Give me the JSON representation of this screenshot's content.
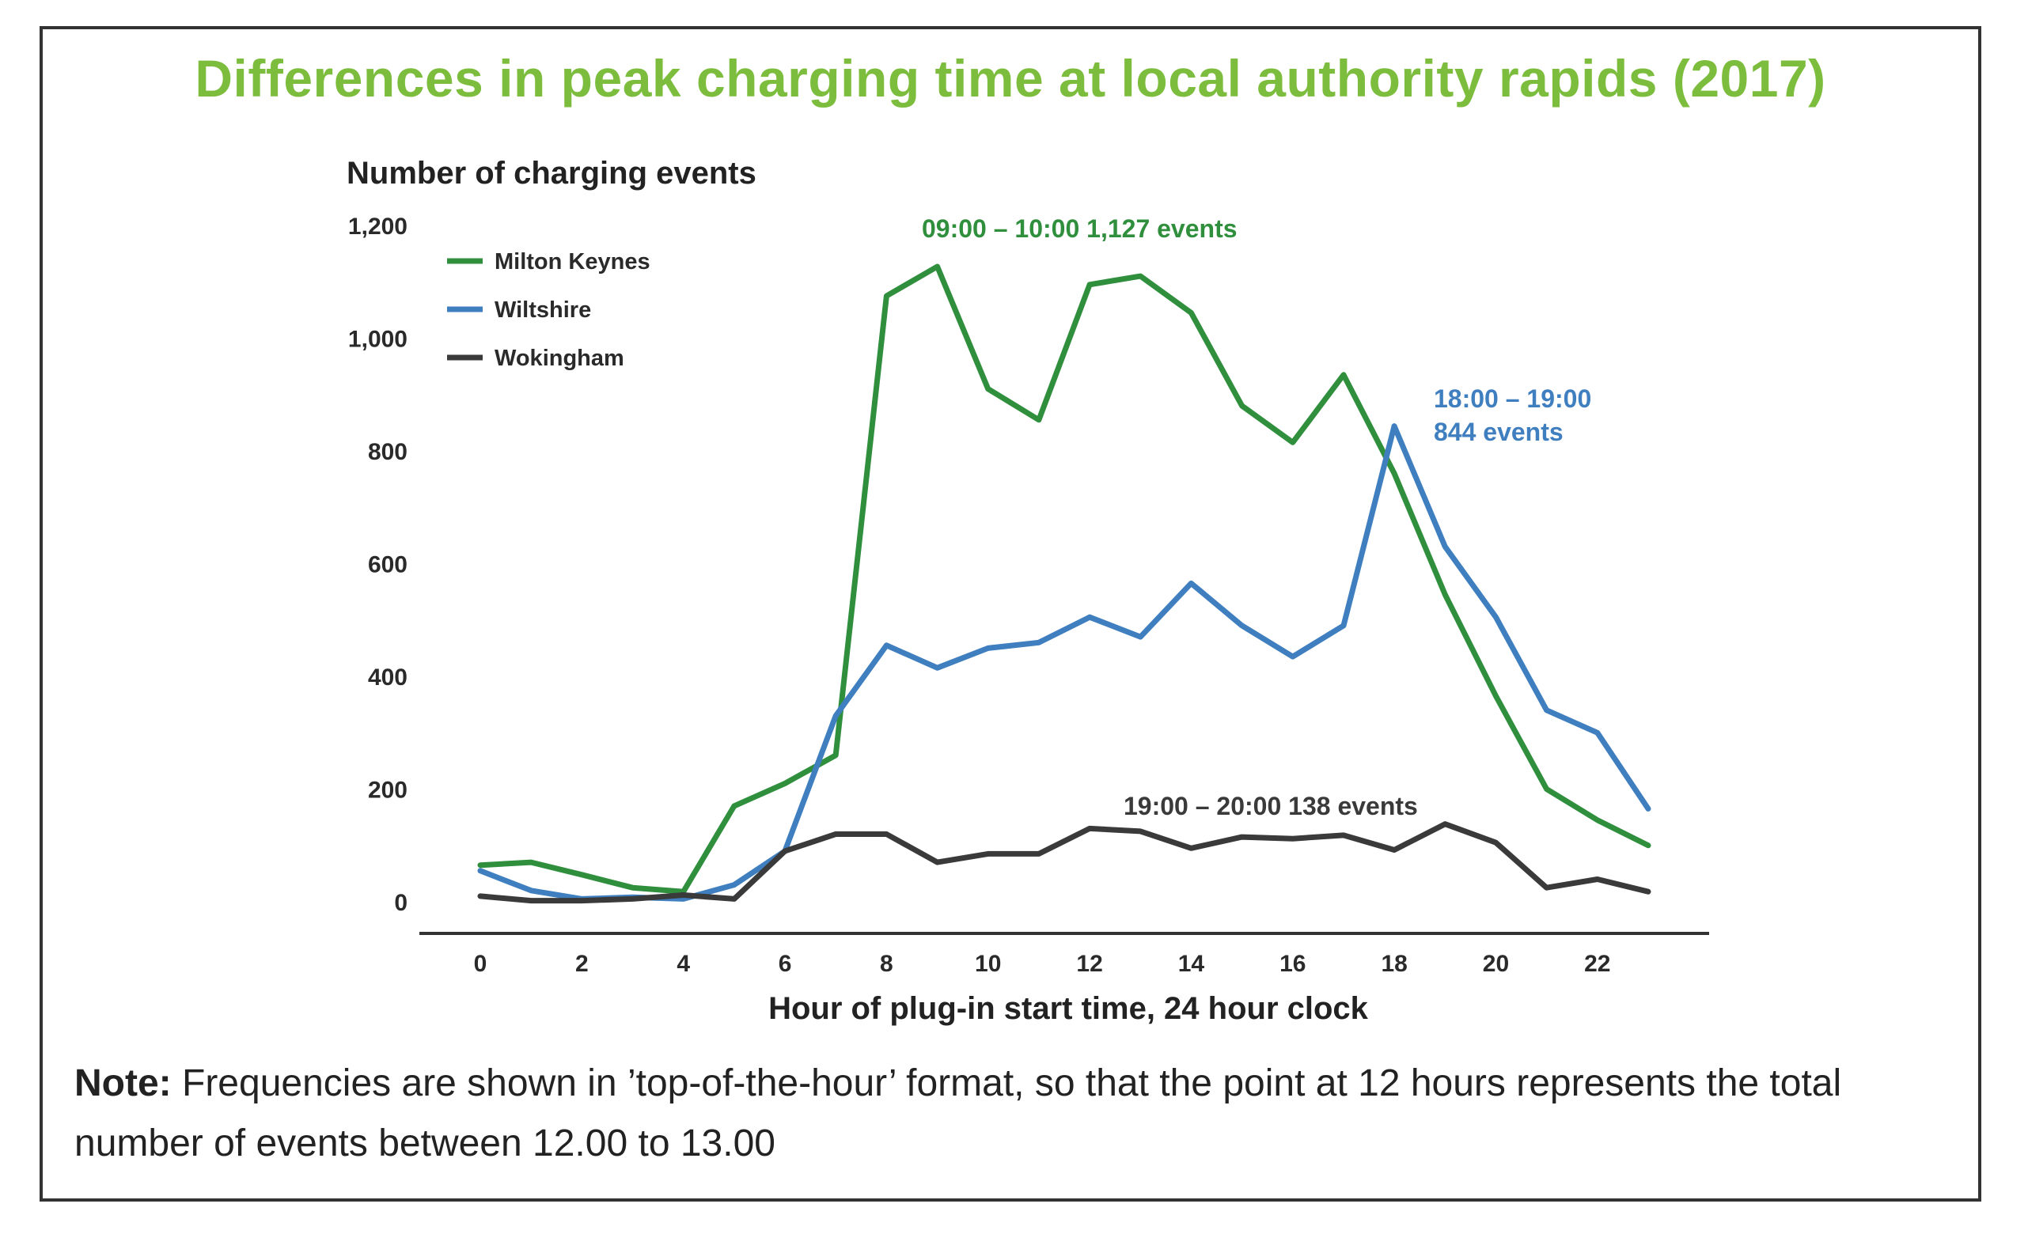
{
  "page": {
    "title": "Differences in peak charging time at local authority rapids (2017)",
    "note_label": "Note:",
    "note_text": " Frequencies are shown in ’top-of-the-hour’ format, so that the point at 12 hours represents the total number of events between 12.00 to 13.00"
  },
  "colors": {
    "title": "#7dbd3d",
    "milton_keynes": "#2f8f3d",
    "wiltshire": "#3f7fc0",
    "wokingham": "#3a3a3a"
  },
  "chart_data": {
    "type": "line",
    "title": "Differences in peak charging time at local authority rapids (2017)",
    "xlabel": "Hour of plug-in start time, 24 hour clock",
    "ylabel": "Number of charging events",
    "x": [
      0,
      1,
      2,
      3,
      4,
      5,
      6,
      7,
      8,
      9,
      10,
      11,
      12,
      13,
      14,
      15,
      16,
      17,
      18,
      19,
      20,
      21,
      22,
      23
    ],
    "xlim": [
      -1.2,
      24.2
    ],
    "ylim": [
      0,
      1200
    ],
    "xticks": [
      "0",
      "2",
      "4",
      "6",
      "8",
      "10",
      "12",
      "14",
      "16",
      "18",
      "20",
      "22"
    ],
    "xtick_values": [
      0,
      2,
      4,
      6,
      8,
      10,
      12,
      14,
      16,
      18,
      20,
      22
    ],
    "yticks": [
      "0",
      "200",
      "400",
      "600",
      "800",
      "1,000",
      "1,200"
    ],
    "ytick_values": [
      0,
      200,
      400,
      600,
      800,
      1000,
      1200
    ],
    "grid": false,
    "legend_position": "top-left",
    "series": [
      {
        "name": "Milton Keynes",
        "color": "#2f8f3d",
        "values": [
          65,
          70,
          48,
          25,
          18,
          170,
          210,
          260,
          1075,
          1127,
          910,
          855,
          1095,
          1110,
          1045,
          880,
          815,
          935,
          760,
          545,
          365,
          200,
          145,
          100
        ]
      },
      {
        "name": "Wiltshire",
        "color": "#3f7fc0",
        "values": [
          55,
          20,
          5,
          8,
          5,
          30,
          90,
          330,
          455,
          415,
          450,
          460,
          505,
          470,
          565,
          490,
          435,
          490,
          844,
          630,
          505,
          340,
          300,
          165
        ]
      },
      {
        "name": "Wokingham",
        "color": "#3a3a3a",
        "values": [
          10,
          2,
          2,
          5,
          12,
          5,
          90,
          120,
          120,
          70,
          85,
          85,
          130,
          125,
          95,
          115,
          112,
          118,
          92,
          138,
          105,
          25,
          40,
          18
        ]
      }
    ],
    "annotations": [
      {
        "text": "09:00 – 10:00 1,127 events",
        "series": "Milton Keynes"
      },
      {
        "text": "18:00 – 19:00",
        "text2": "844 events",
        "series": "Wiltshire"
      },
      {
        "text": "19:00 – 20:00 138 events",
        "series": "Wokingham"
      }
    ]
  }
}
